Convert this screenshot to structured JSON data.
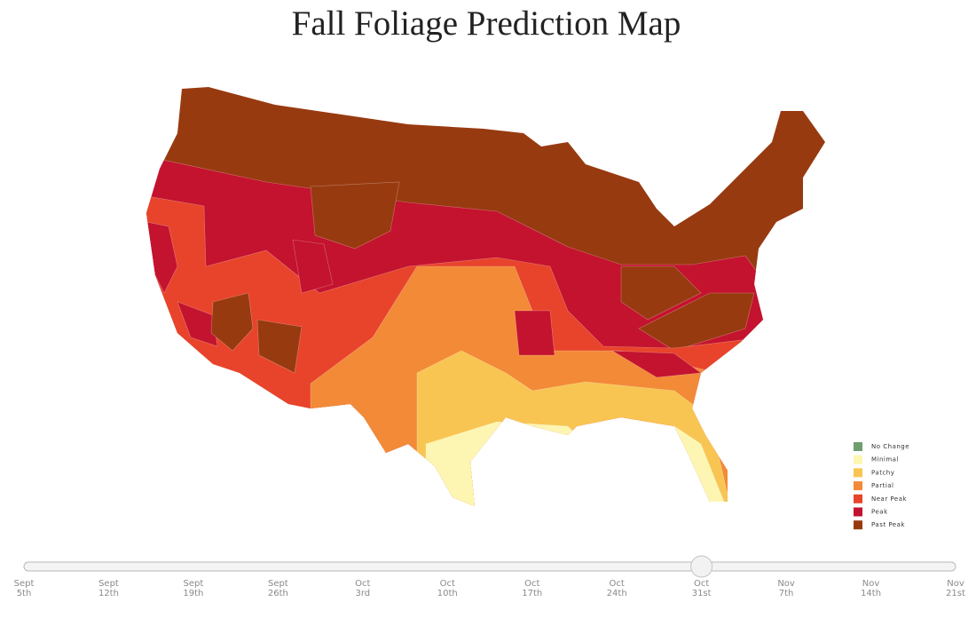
{
  "title": "Fall Foliage Prediction Map",
  "legend": [
    {
      "label": "No Change",
      "color": "#6e9e6e"
    },
    {
      "label": "Minimal",
      "color": "#fdf6b2"
    },
    {
      "label": "Patchy",
      "color": "#f8c553"
    },
    {
      "label": "Partial",
      "color": "#f28a38"
    },
    {
      "label": "Near Peak",
      "color": "#e8442b"
    },
    {
      "label": "Peak",
      "color": "#c3132f"
    },
    {
      "label": "Past Peak",
      "color": "#983a10"
    }
  ],
  "timeline": {
    "dates": [
      {
        "month": "Sept",
        "day": "5th"
      },
      {
        "month": "Sept",
        "day": "12th"
      },
      {
        "month": "Sept",
        "day": "19th"
      },
      {
        "month": "Sept",
        "day": "26th"
      },
      {
        "month": "Oct",
        "day": "3rd"
      },
      {
        "month": "Oct",
        "day": "10th"
      },
      {
        "month": "Oct",
        "day": "17th"
      },
      {
        "month": "Oct",
        "day": "24th"
      },
      {
        "month": "Oct",
        "day": "31st"
      },
      {
        "month": "Nov",
        "day": "7th"
      },
      {
        "month": "Nov",
        "day": "14th"
      },
      {
        "month": "Nov",
        "day": "21st"
      }
    ],
    "selected": 8
  }
}
